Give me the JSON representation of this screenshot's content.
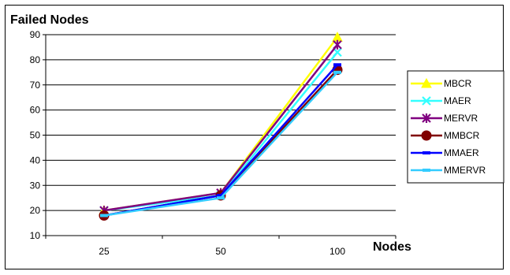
{
  "chart_data": {
    "type": "line",
    "title": "",
    "xlabel": "Nodes",
    "ylabel": "Failed Nodes",
    "categories": [
      "25",
      "50",
      "100"
    ],
    "ylim": [
      10,
      90
    ],
    "yticks": [
      10,
      20,
      30,
      40,
      50,
      60,
      70,
      80,
      90
    ],
    "grid": "horizontal major gridlines",
    "legend_position": "right",
    "series": [
      {
        "name": "MBCR",
        "values": [
          20,
          27,
          89
        ],
        "color": "#ffff00",
        "marker": "triangle"
      },
      {
        "name": "MAER",
        "values": [
          20,
          26,
          83
        ],
        "color": "#33ffff",
        "marker": "x"
      },
      {
        "name": "MERVR",
        "values": [
          20,
          27,
          86
        ],
        "color": "#800080",
        "marker": "star"
      },
      {
        "name": "MMBCR",
        "values": [
          18,
          26,
          76
        ],
        "color": "#800000",
        "marker": "circle"
      },
      {
        "name": "MMAER",
        "values": [
          18,
          26,
          78
        ],
        "color": "#0000ff",
        "marker": "dash"
      },
      {
        "name": "MMERVR",
        "values": [
          18,
          25,
          75
        ],
        "color": "#33ccff",
        "marker": "dash"
      }
    ]
  }
}
